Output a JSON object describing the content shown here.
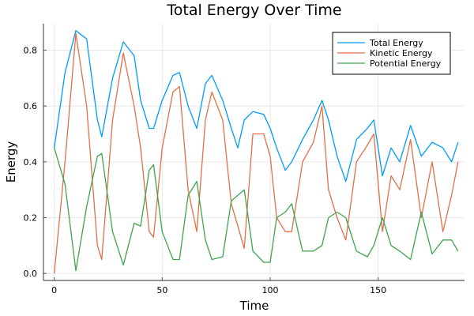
{
  "chart_data": {
    "type": "line",
    "title": "Total Energy Over Time",
    "xlabel": "Time",
    "ylabel": "Energy",
    "xlim": [
      -5,
      190
    ],
    "ylim": [
      -0.025,
      0.895
    ],
    "xticks": [
      0,
      50,
      100,
      150
    ],
    "xtick_labels": [
      "0",
      "50",
      "100",
      "150"
    ],
    "yticks": [
      0.0,
      0.2,
      0.4,
      0.6,
      0.8
    ],
    "ytick_labels": [
      "0.0",
      "0.2",
      "0.4",
      "0.6",
      "0.8"
    ],
    "grid": true,
    "legend_position": "top-right",
    "x": [
      0,
      5,
      10,
      15,
      20,
      22,
      27,
      32,
      37,
      40,
      44,
      46,
      50,
      55,
      58,
      62,
      66,
      70,
      73,
      78,
      82,
      85,
      88,
      92,
      97,
      100,
      103,
      107,
      110,
      115,
      120,
      124,
      127,
      131,
      135,
      140,
      145,
      148,
      152,
      156,
      160,
      165,
      170,
      175,
      180,
      184,
      187
    ],
    "series": [
      {
        "name": "Total Energy",
        "color": "#009af9",
        "values": [
          0.45,
          0.72,
          0.87,
          0.84,
          0.55,
          0.49,
          0.7,
          0.83,
          0.78,
          0.62,
          0.52,
          0.52,
          0.62,
          0.71,
          0.72,
          0.6,
          0.52,
          0.68,
          0.71,
          0.62,
          0.52,
          0.45,
          0.55,
          0.58,
          0.57,
          0.52,
          0.45,
          0.37,
          0.4,
          0.48,
          0.55,
          0.62,
          0.55,
          0.42,
          0.33,
          0.48,
          0.52,
          0.55,
          0.35,
          0.45,
          0.4,
          0.53,
          0.42,
          0.47,
          0.45,
          0.4,
          0.47
        ]
      },
      {
        "name": "Kinetic Energy",
        "color": "#e26f46",
        "values": [
          0.0,
          0.4,
          0.86,
          0.6,
          0.1,
          0.05,
          0.55,
          0.79,
          0.6,
          0.45,
          0.15,
          0.13,
          0.45,
          0.65,
          0.67,
          0.3,
          0.15,
          0.55,
          0.65,
          0.55,
          0.25,
          0.17,
          0.09,
          0.5,
          0.5,
          0.42,
          0.2,
          0.15,
          0.15,
          0.4,
          0.47,
          0.6,
          0.3,
          0.2,
          0.12,
          0.4,
          0.46,
          0.5,
          0.15,
          0.35,
          0.3,
          0.48,
          0.2,
          0.4,
          0.15,
          0.28,
          0.4
        ]
      },
      {
        "name": "Potential Energy",
        "color": "#3da44d",
        "values": [
          0.45,
          0.32,
          0.01,
          0.24,
          0.42,
          0.43,
          0.15,
          0.03,
          0.18,
          0.17,
          0.37,
          0.39,
          0.15,
          0.05,
          0.05,
          0.28,
          0.33,
          0.12,
          0.05,
          0.06,
          0.26,
          0.28,
          0.3,
          0.08,
          0.04,
          0.04,
          0.2,
          0.22,
          0.25,
          0.08,
          0.08,
          0.1,
          0.2,
          0.22,
          0.2,
          0.08,
          0.06,
          0.1,
          0.2,
          0.1,
          0.08,
          0.05,
          0.22,
          0.07,
          0.12,
          0.12,
          0.08
        ]
      }
    ]
  }
}
